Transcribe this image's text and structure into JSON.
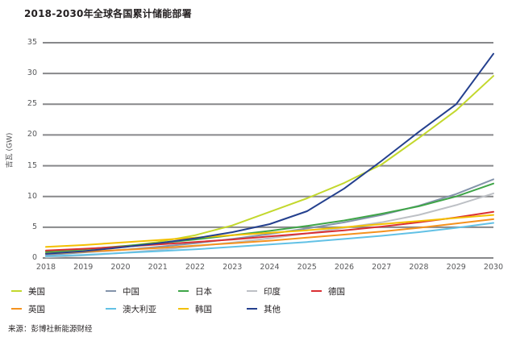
{
  "title": "2018-2030年全球各国累计储能部署",
  "source": "来源：彭博社新能源财经",
  "colors": {
    "text_dark": "#231f20",
    "tick_text": "#58595b",
    "gridline": "#87888a"
  },
  "chart_data": {
    "type": "line",
    "title": "2018-2030年全球各国累计储能部署",
    "xlabel": "",
    "ylabel": "吉瓦 (GW)",
    "x": [
      2018,
      2019,
      2020,
      2021,
      2022,
      2023,
      2024,
      2025,
      2026,
      2027,
      2028,
      2029,
      2030
    ],
    "ylim": [
      0,
      35
    ],
    "ytick_step": 5,
    "grid": "horizontal",
    "legend_position": "bottom",
    "series": [
      {
        "id": "us",
        "name": "美国",
        "color": "#c3d82d",
        "values": [
          0.8,
          1.2,
          1.8,
          2.6,
          3.7,
          5.3,
          7.5,
          9.7,
          12.2,
          15.2,
          19.5,
          24.0,
          29.6
        ]
      },
      {
        "id": "china",
        "name": "中国",
        "color": "#8494ab",
        "values": [
          0.5,
          0.9,
          1.3,
          1.8,
          2.4,
          3.1,
          3.9,
          4.8,
          5.8,
          7.0,
          8.5,
          10.4,
          12.8
        ]
      },
      {
        "id": "japan",
        "name": "日本",
        "color": "#3fa548",
        "values": [
          1.0,
          1.4,
          1.9,
          2.4,
          3.0,
          3.7,
          4.4,
          5.2,
          6.1,
          7.2,
          8.4,
          10.0,
          12.1
        ]
      },
      {
        "id": "india",
        "name": "印度",
        "color": "#bdc0c5",
        "values": [
          0.1,
          0.4,
          0.8,
          1.3,
          1.9,
          2.5,
          3.2,
          4.0,
          4.9,
          5.8,
          7.0,
          8.6,
          10.5
        ]
      },
      {
        "id": "germany",
        "name": "德国",
        "color": "#da2f33",
        "values": [
          1.2,
          1.5,
          1.8,
          2.2,
          2.6,
          3.0,
          3.5,
          4.0,
          4.5,
          5.1,
          5.8,
          6.6,
          7.5
        ]
      },
      {
        "id": "uk",
        "name": "英国",
        "color": "#f5921e",
        "values": [
          0.7,
          1.0,
          1.3,
          1.6,
          2.0,
          2.4,
          2.8,
          3.3,
          3.8,
          4.3,
          4.9,
          5.6,
          6.3
        ]
      },
      {
        "id": "australia",
        "name": "澳大利亚",
        "color": "#62c1e5",
        "values": [
          0.3,
          0.5,
          0.8,
          1.1,
          1.4,
          1.8,
          2.2,
          2.6,
          3.1,
          3.6,
          4.2,
          4.9,
          5.7
        ]
      },
      {
        "id": "south-korea",
        "name": "韩国",
        "color": "#f3c000",
        "values": [
          1.8,
          2.1,
          2.5,
          2.9,
          3.3,
          3.7,
          4.1,
          4.5,
          5.0,
          5.5,
          6.0,
          6.5,
          7.0
        ]
      },
      {
        "id": "others",
        "name": "其他",
        "color": "#24408e",
        "values": [
          0.7,
          1.1,
          1.7,
          2.4,
          3.2,
          4.2,
          5.5,
          7.6,
          11.3,
          15.8,
          20.5,
          25.0,
          33.2
        ]
      }
    ],
    "legend_rows": [
      [
        "us",
        "china",
        "japan",
        "india",
        "germany"
      ],
      [
        "uk",
        "australia",
        "south-korea",
        "others"
      ]
    ]
  }
}
